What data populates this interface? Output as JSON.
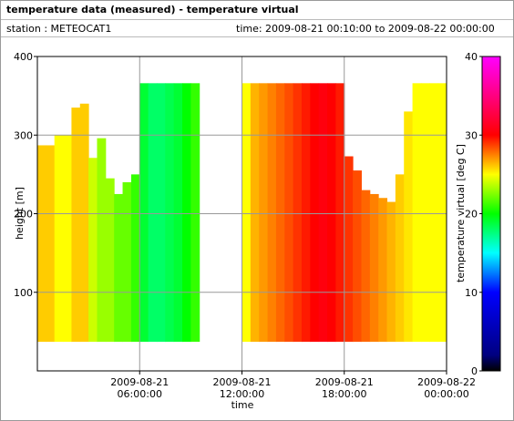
{
  "header": {
    "title": "temperature data (measured) - temperature virtual",
    "station": "station : METEOCAT1",
    "time": "time: 2009-08-21 00:10:00 to 2009-08-22 00:00:00"
  },
  "chart_data": {
    "type": "heatmap",
    "xlabel": "time",
    "ylabel": "height [m]",
    "colorbar_label": "temperature virtual [deg C]",
    "xlim": [
      "2009-08-21 00:00:00",
      "2009-08-22 00:00:00"
    ],
    "xticks": [
      "2009-08-21 06:00:00",
      "2009-08-21 12:00:00",
      "2009-08-21 18:00:00",
      "2009-08-22 00:00:00"
    ],
    "ylim": [
      0,
      400
    ],
    "yticks": [
      100,
      200,
      300,
      400
    ],
    "clim": [
      0,
      40
    ],
    "cticks": [
      0,
      10,
      20,
      30,
      40
    ],
    "colormap": [
      [
        0,
        "#000000"
      ],
      [
        2,
        "#000080"
      ],
      [
        10,
        "#0000ff"
      ],
      [
        15,
        "#00ffff"
      ],
      [
        20,
        "#00ff00"
      ],
      [
        25,
        "#ffff00"
      ],
      [
        30,
        "#ff0000"
      ],
      [
        40,
        "#ff00ff"
      ]
    ],
    "grid": true,
    "column_width_minutes": 30,
    "height_min": 37,
    "x": [
      "2009-08-21 00:00:00",
      "2009-08-21 00:30:00",
      "2009-08-21 01:00:00",
      "2009-08-21 01:30:00",
      "2009-08-21 02:00:00",
      "2009-08-21 02:30:00",
      "2009-08-21 03:00:00",
      "2009-08-21 03:30:00",
      "2009-08-21 04:00:00",
      "2009-08-21 04:30:00",
      "2009-08-21 05:00:00",
      "2009-08-21 05:30:00",
      "2009-08-21 06:00:00",
      "2009-08-21 06:30:00",
      "2009-08-21 07:00:00",
      "2009-08-21 07:30:00",
      "2009-08-21 08:00:00",
      "2009-08-21 08:30:00",
      "2009-08-21 09:00:00",
      "2009-08-21 09:30:00",
      "2009-08-21 10:00:00",
      "2009-08-21 10:30:00",
      "2009-08-21 11:00:00",
      "2009-08-21 11:30:00",
      "2009-08-21 12:00:00",
      "2009-08-21 12:30:00",
      "2009-08-21 13:00:00",
      "2009-08-21 13:30:00",
      "2009-08-21 14:00:00",
      "2009-08-21 14:30:00",
      "2009-08-21 15:00:00",
      "2009-08-21 15:30:00",
      "2009-08-21 16:00:00",
      "2009-08-21 16:30:00",
      "2009-08-21 17:00:00",
      "2009-08-21 17:30:00",
      "2009-08-21 18:00:00",
      "2009-08-21 18:30:00",
      "2009-08-21 19:00:00",
      "2009-08-21 19:30:00",
      "2009-08-21 20:00:00",
      "2009-08-21 20:30:00",
      "2009-08-21 21:00:00",
      "2009-08-21 21:30:00",
      "2009-08-21 22:00:00",
      "2009-08-21 22:30:00",
      "2009-08-21 23:00:00",
      "2009-08-21 23:30:00"
    ],
    "values": [
      26,
      26,
      25,
      25,
      26,
      26,
      24,
      23,
      23,
      22,
      22,
      21,
      19,
      18,
      18,
      18.5,
      19,
      20,
      21,
      null,
      null,
      null,
      null,
      null,
      25,
      26.5,
      27,
      27.5,
      28,
      28.5,
      29,
      29.5,
      30,
      30.5,
      30,
      29.5,
      29,
      28.5,
      28,
      27.5,
      27,
      26.5,
      26,
      25.5,
      25,
      25,
      25,
      25
    ],
    "heights": [
      287,
      287,
      300,
      300,
      335,
      340,
      271,
      296,
      245,
      225,
      240,
      250,
      366,
      366,
      366,
      366,
      366,
      366,
      366,
      null,
      null,
      null,
      null,
      null,
      366,
      366,
      366,
      366,
      366,
      366,
      366,
      366,
      366,
      366,
      366,
      366,
      273,
      255,
      230,
      225,
      220,
      215,
      250,
      330,
      366,
      366,
      366,
      366
    ]
  }
}
